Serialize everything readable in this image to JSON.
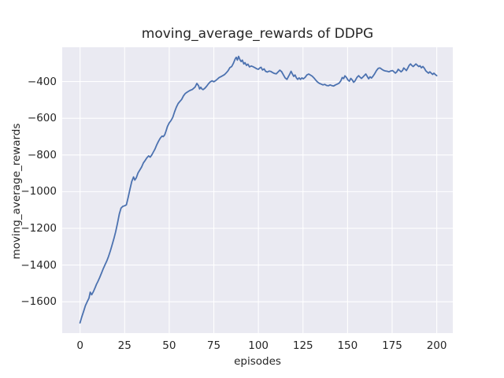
{
  "title": "moving_average_rewards of DDPG",
  "colors": {
    "figure_background": "#ffffff",
    "axes_background": "#eaeaf2",
    "gridline": "#ffffff",
    "line": "#4c72b0",
    "text": "#262626"
  },
  "chart_data": {
    "type": "line",
    "title": "moving_average_rewards of DDPG",
    "xlabel": "episodes",
    "ylabel": "moving_average_rewards",
    "xlim": [
      -10,
      209
    ],
    "ylim": [
      -1771,
      -213
    ],
    "grid": true,
    "legend_position": "none",
    "x_ticks": [
      0,
      25,
      50,
      75,
      100,
      125,
      150,
      175,
      200
    ],
    "x_tick_labels": [
      "0",
      "25",
      "50",
      "75",
      "100",
      "125",
      "150",
      "175",
      "200"
    ],
    "y_ticks": [
      -400,
      -600,
      -800,
      -1000,
      -1200,
      -1400,
      -1600
    ],
    "y_tick_labels": [
      "−400",
      "−600",
      "−800",
      "−1000",
      "−1200",
      "−1400",
      "−1600"
    ],
    "series": [
      {
        "name": "moving_average_rewards",
        "color": "#4c72b0",
        "points": [
          [
            0,
            -1715
          ],
          [
            1,
            -1682
          ],
          [
            2,
            -1652
          ],
          [
            3,
            -1622
          ],
          [
            4,
            -1600
          ],
          [
            5,
            -1580
          ],
          [
            5.7,
            -1548
          ],
          [
            6.5,
            -1562
          ],
          [
            7.5,
            -1545
          ],
          [
            8.5,
            -1522
          ],
          [
            9.2,
            -1505
          ],
          [
            10,
            -1490
          ],
          [
            11,
            -1468
          ],
          [
            12,
            -1445
          ],
          [
            13,
            -1420
          ],
          [
            14,
            -1398
          ],
          [
            15,
            -1378
          ],
          [
            16,
            -1352
          ],
          [
            17,
            -1322
          ],
          [
            18,
            -1290
          ],
          [
            19,
            -1255
          ],
          [
            20,
            -1218
          ],
          [
            21,
            -1172
          ],
          [
            22,
            -1122
          ],
          [
            23,
            -1090
          ],
          [
            24,
            -1080
          ],
          [
            25,
            -1077
          ],
          [
            26,
            -1072
          ],
          [
            27,
            -1030
          ],
          [
            28,
            -985
          ],
          [
            29,
            -945
          ],
          [
            30,
            -920
          ],
          [
            30.7,
            -937
          ],
          [
            31.5,
            -925
          ],
          [
            32.5,
            -898
          ],
          [
            33.5,
            -882
          ],
          [
            34.5,
            -866
          ],
          [
            35.5,
            -843
          ],
          [
            36.5,
            -830
          ],
          [
            37.5,
            -815
          ],
          [
            38.5,
            -805
          ],
          [
            39.3,
            -812
          ],
          [
            40.2,
            -800
          ],
          [
            41,
            -786
          ],
          [
            42,
            -768
          ],
          [
            43,
            -745
          ],
          [
            44,
            -725
          ],
          [
            45,
            -708
          ],
          [
            46,
            -697
          ],
          [
            46.7,
            -700
          ],
          [
            47.5,
            -690
          ],
          [
            48.2,
            -670
          ],
          [
            49,
            -645
          ],
          [
            50,
            -625
          ],
          [
            51,
            -612
          ],
          [
            52,
            -595
          ],
          [
            53,
            -565
          ],
          [
            54,
            -540
          ],
          [
            55,
            -520
          ],
          [
            56,
            -508
          ],
          [
            57,
            -497
          ],
          [
            58,
            -478
          ],
          [
            59,
            -465
          ],
          [
            60,
            -458
          ],
          [
            61.5,
            -449
          ],
          [
            63,
            -443
          ],
          [
            64.5,
            -430
          ],
          [
            65.5,
            -410
          ],
          [
            66.5,
            -424
          ],
          [
            67,
            -440
          ],
          [
            67.7,
            -431
          ],
          [
            68.3,
            -440
          ],
          [
            69,
            -444
          ],
          [
            70,
            -436
          ],
          [
            71,
            -425
          ],
          [
            72,
            -412
          ],
          [
            73,
            -402
          ],
          [
            74,
            -396
          ],
          [
            75,
            -401
          ],
          [
            76,
            -395
          ],
          [
            77,
            -387
          ],
          [
            78,
            -378
          ],
          [
            79,
            -373
          ],
          [
            80,
            -368
          ],
          [
            81,
            -362
          ],
          [
            82,
            -352
          ],
          [
            83,
            -341
          ],
          [
            84,
            -324
          ],
          [
            85,
            -318
          ],
          [
            86,
            -300
          ],
          [
            87,
            -276
          ],
          [
            87.6,
            -268
          ],
          [
            88.2,
            -283
          ],
          [
            88.9,
            -263
          ],
          [
            89.6,
            -280
          ],
          [
            90.3,
            -291
          ],
          [
            91,
            -283
          ],
          [
            91.8,
            -304
          ],
          [
            92.5,
            -297
          ],
          [
            93.3,
            -312
          ],
          [
            94.1,
            -305
          ],
          [
            95,
            -320
          ],
          [
            96,
            -315
          ],
          [
            97,
            -319
          ],
          [
            98,
            -324
          ],
          [
            99,
            -330
          ],
          [
            100,
            -333
          ],
          [
            100.8,
            -326
          ],
          [
            101.5,
            -322
          ],
          [
            102.3,
            -337
          ],
          [
            103.2,
            -331
          ],
          [
            104,
            -344
          ],
          [
            105,
            -348
          ],
          [
            106,
            -343
          ],
          [
            107,
            -345
          ],
          [
            108,
            -351
          ],
          [
            109,
            -356
          ],
          [
            110,
            -358
          ],
          [
            111,
            -348
          ],
          [
            112,
            -338
          ],
          [
            113,
            -346
          ],
          [
            114,
            -363
          ],
          [
            115,
            -380
          ],
          [
            116,
            -388
          ],
          [
            116.8,
            -373
          ],
          [
            117.6,
            -359
          ],
          [
            118.3,
            -344
          ],
          [
            119,
            -358
          ],
          [
            119.8,
            -372
          ],
          [
            120.5,
            -364
          ],
          [
            121.3,
            -380
          ],
          [
            122,
            -388
          ],
          [
            122.8,
            -380
          ],
          [
            123.6,
            -388
          ],
          [
            124.4,
            -380
          ],
          [
            125.2,
            -385
          ],
          [
            126.2,
            -377
          ],
          [
            127.2,
            -364
          ],
          [
            128.2,
            -359
          ],
          [
            129.2,
            -365
          ],
          [
            130.2,
            -371
          ],
          [
            131.2,
            -381
          ],
          [
            132.2,
            -393
          ],
          [
            133.2,
            -403
          ],
          [
            134.2,
            -410
          ],
          [
            135.2,
            -414
          ],
          [
            136.2,
            -418
          ],
          [
            137.2,
            -415
          ],
          [
            138.2,
            -421
          ],
          [
            139.2,
            -423
          ],
          [
            140.2,
            -418
          ],
          [
            141.2,
            -422
          ],
          [
            142.2,
            -424
          ],
          [
            143.2,
            -418
          ],
          [
            144.2,
            -414
          ],
          [
            145.2,
            -409
          ],
          [
            146.2,
            -396
          ],
          [
            147,
            -378
          ],
          [
            147.8,
            -384
          ],
          [
            148.5,
            -369
          ],
          [
            149.3,
            -377
          ],
          [
            150.2,
            -391
          ],
          [
            151,
            -398
          ],
          [
            151.8,
            -383
          ],
          [
            152.6,
            -391
          ],
          [
            153.4,
            -404
          ],
          [
            154.2,
            -396
          ],
          [
            155.2,
            -378
          ],
          [
            156.2,
            -368
          ],
          [
            157,
            -376
          ],
          [
            157.8,
            -383
          ],
          [
            158.6,
            -375
          ],
          [
            159.4,
            -367
          ],
          [
            160.2,
            -359
          ],
          [
            161,
            -372
          ],
          [
            161.8,
            -385
          ],
          [
            162.6,
            -374
          ],
          [
            163.4,
            -381
          ],
          [
            164.2,
            -372
          ],
          [
            165.2,
            -357
          ],
          [
            166.2,
            -340
          ],
          [
            167.2,
            -328
          ],
          [
            168.2,
            -326
          ],
          [
            169.2,
            -333
          ],
          [
            170.2,
            -339
          ],
          [
            171.2,
            -342
          ],
          [
            172.2,
            -344
          ],
          [
            173.2,
            -347
          ],
          [
            174.2,
            -342
          ],
          [
            175.2,
            -340
          ],
          [
            176,
            -347
          ],
          [
            176.8,
            -354
          ],
          [
            177.6,
            -347
          ],
          [
            178.4,
            -333
          ],
          [
            179.2,
            -340
          ],
          [
            180,
            -347
          ],
          [
            180.8,
            -340
          ],
          [
            181.5,
            -326
          ],
          [
            182.3,
            -333
          ],
          [
            183,
            -340
          ],
          [
            183.8,
            -326
          ],
          [
            184.5,
            -312
          ],
          [
            185.3,
            -304
          ],
          [
            186,
            -312
          ],
          [
            186.8,
            -318
          ],
          [
            187.6,
            -311
          ],
          [
            188.3,
            -304
          ],
          [
            189.1,
            -311
          ],
          [
            189.9,
            -318
          ],
          [
            190.6,
            -314
          ],
          [
            191.4,
            -325
          ],
          [
            192.2,
            -318
          ],
          [
            193,
            -327
          ],
          [
            193.8,
            -341
          ],
          [
            194.6,
            -348
          ],
          [
            195.4,
            -354
          ],
          [
            196.1,
            -347
          ],
          [
            196.9,
            -354
          ],
          [
            197.7,
            -361
          ],
          [
            198.4,
            -354
          ],
          [
            199.2,
            -362
          ],
          [
            200,
            -368
          ]
        ]
      }
    ]
  }
}
